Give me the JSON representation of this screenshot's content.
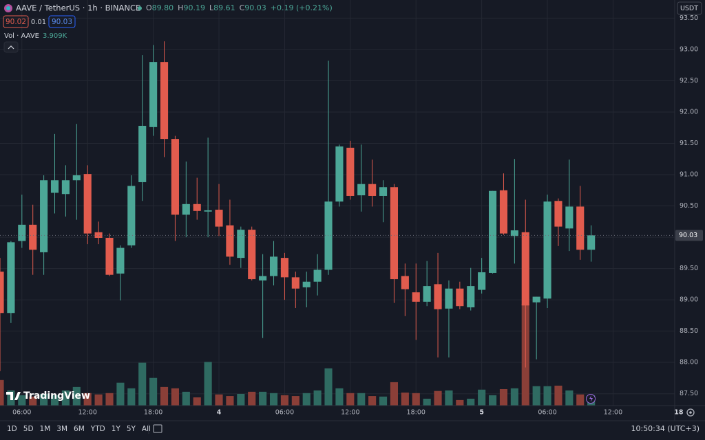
{
  "header": {
    "symbol": "AAVE / TetherUS · 1h · BINANCE",
    "ohlc": [
      {
        "key": "O",
        "value": "89.80"
      },
      {
        "key": "H",
        "value": "90.19"
      },
      {
        "key": "L",
        "value": "89.61"
      },
      {
        "key": "C",
        "value": "90.03"
      }
    ],
    "change": "+0.19 (+0.21%)",
    "sell": "90.02",
    "spread": "0.01",
    "buy": "90.03",
    "volume_label": "Vol · AAVE",
    "volume_value": "3.909K"
  },
  "currency": "USDT",
  "price_tag": "90.03",
  "logo": "TradingView",
  "toolbar": {
    "ranges": [
      "1D",
      "5D",
      "1M",
      "3M",
      "6M",
      "YTD",
      "1Y",
      "5Y",
      "All"
    ],
    "time": "10:50:34 (UTC+3)"
  },
  "chart_data": {
    "type": "candlestick",
    "up_color": "#4ca797",
    "down_color": "#e25c4e",
    "up_volume_color": "#2f6b62",
    "down_volume_color": "#8b3f38",
    "grid": true,
    "x": [
      4,
      5,
      6,
      7,
      8,
      9,
      10,
      11,
      12,
      13,
      14,
      15,
      16,
      17,
      18,
      19,
      20,
      21,
      22,
      23,
      24,
      25,
      26,
      27,
      28,
      29,
      30,
      31,
      32,
      33,
      34,
      35,
      36,
      37,
      38,
      39,
      40,
      41,
      42,
      43,
      44,
      45,
      46,
      47,
      48,
      49,
      50,
      51,
      52,
      53,
      54,
      55,
      56,
      57,
      58
    ],
    "open": [
      89.45,
      88.79,
      89.94,
      90.2,
      89.76,
      90.71,
      90.69,
      90.91,
      91.01,
      90.08,
      89.99,
      89.42,
      89.87,
      90.88,
      91.76,
      92.8,
      91.57,
      90.36,
      90.53,
      90.41,
      90.44,
      90.19,
      89.67,
      90.12,
      89.31,
      89.38,
      89.67,
      89.36,
      89.2,
      89.29,
      89.48,
      90.57,
      91.43,
      90.67,
      90.85,
      90.66,
      90.8,
      89.38,
      89.12,
      88.97,
      89.25,
      88.86,
      89.18,
      88.88,
      89.16,
      89.43,
      90.75,
      90.02,
      90.08,
      88.96,
      89.02,
      90.58,
      90.14,
      90.49,
      89.8
    ],
    "high": [
      89.67,
      89.94,
      90.68,
      90.52,
      90.99,
      91.65,
      91.15,
      91.81,
      91.15,
      90.25,
      90.06,
      89.87,
      90.99,
      92.91,
      93.07,
      93.13,
      91.62,
      91.21,
      90.95,
      91.59,
      90.85,
      90.6,
      90.17,
      90.17,
      89.73,
      89.94,
      89.75,
      89.45,
      89.45,
      89.73,
      92.82,
      91.48,
      91.54,
      91.48,
      91.24,
      90.91,
      90.85,
      89.58,
      89.58,
      89.62,
      89.75,
      89.31,
      89.29,
      89.51,
      89.67,
      90.74,
      91.02,
      91.25,
      90.6,
      89.05,
      90.68,
      90.62,
      91.24,
      90.82,
      90.19
    ],
    "low": [
      87.86,
      88.63,
      89.83,
      89.4,
      89.4,
      90.38,
      90.33,
      90.28,
      89.89,
      89.89,
      89.38,
      88.99,
      89.83,
      90.58,
      91.62,
      91.28,
      89.94,
      90.0,
      90.28,
      90.0,
      90.02,
      89.56,
      89.51,
      89.31,
      88.39,
      89.23,
      89.0,
      88.87,
      88.88,
      89.07,
      89.4,
      90.49,
      90.6,
      90.41,
      90.49,
      90.24,
      88.95,
      88.74,
      88.36,
      88.9,
      88.08,
      88.08,
      88.85,
      88.83,
      89.1,
      89.42,
      90.04,
      89.58,
      87.92,
      88.05,
      88.87,
      89.86,
      89.78,
      89.64,
      89.61
    ],
    "close": [
      88.79,
      89.92,
      90.2,
      89.8,
      90.91,
      90.91,
      90.91,
      90.99,
      90.06,
      89.99,
      89.4,
      89.83,
      90.82,
      91.78,
      92.8,
      91.57,
      90.36,
      90.53,
      90.42,
      90.43,
      90.17,
      89.69,
      90.12,
      89.33,
      89.38,
      89.69,
      89.36,
      89.18,
      89.29,
      89.48,
      90.57,
      91.45,
      90.66,
      90.85,
      90.66,
      90.8,
      89.33,
      89.17,
      88.97,
      89.22,
      88.85,
      89.18,
      88.9,
      89.22,
      89.44,
      90.74,
      90.06,
      90.11,
      88.91,
      89.05,
      90.57,
      90.17,
      90.49,
      89.8,
      90.03
    ],
    "volume": [
      9.6,
      5.7,
      3.9,
      3.4,
      4.4,
      3.9,
      5.7,
      7.0,
      4.7,
      4.2,
      4.7,
      8.6,
      6.5,
      16.1,
      10.4,
      7.0,
      6.5,
      5.2,
      3.1,
      16.4,
      4.2,
      3.6,
      4.4,
      5.2,
      5.2,
      4.7,
      3.9,
      3.6,
      4.7,
      5.7,
      14.0,
      6.5,
      4.7,
      4.7,
      3.6,
      3.4,
      8.8,
      4.9,
      4.7,
      2.6,
      5.5,
      5.7,
      2.1,
      2.6,
      6.0,
      3.9,
      6.2,
      6.5,
      38.2,
      7.3,
      7.3,
      7.5,
      5.7,
      4.2,
      3.909
    ],
    "xlim": [
      4,
      65.63
    ],
    "xticks": [
      {
        "value": 6,
        "label": "06:00"
      },
      {
        "value": 12,
        "label": "12:00"
      },
      {
        "value": 18,
        "label": "18:00"
      },
      {
        "value": 24,
        "label": "4"
      },
      {
        "value": 30,
        "label": "06:00"
      },
      {
        "value": 36,
        "label": "12:00"
      },
      {
        "value": 42,
        "label": "18:00"
      },
      {
        "value": 48,
        "label": "5"
      },
      {
        "value": 54,
        "label": "06:00"
      },
      {
        "value": 60,
        "label": "12:00"
      },
      {
        "value": 66,
        "label": "18"
      }
    ],
    "ylim": [
      87.31,
      93.79
    ],
    "yticks": [
      {
        "value": 87.5,
        "label": "87.50"
      },
      {
        "value": 88,
        "label": "88.00"
      },
      {
        "value": 88.5,
        "label": "88.50"
      },
      {
        "value": 89,
        "label": "89.00"
      },
      {
        "value": 89.5,
        "label": "89.50"
      },
      {
        "value": 90,
        "label": "90.00"
      },
      {
        "value": 90.5,
        "label": "90.50"
      },
      {
        "value": 91,
        "label": "91.00"
      },
      {
        "value": 91.5,
        "label": "91.50"
      },
      {
        "value": 92,
        "label": "92.00"
      },
      {
        "value": 92.5,
        "label": "92.50"
      },
      {
        "value": 93,
        "label": "93.00"
      },
      {
        "value": 93.5,
        "label": "93.50"
      }
    ]
  }
}
